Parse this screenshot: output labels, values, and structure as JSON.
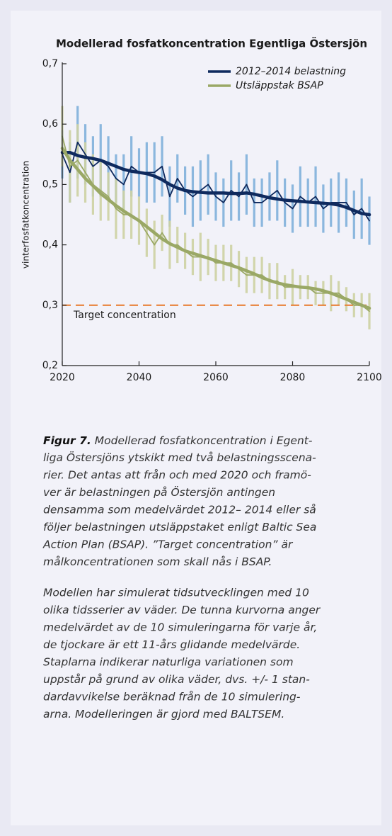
{
  "chart_data": {
    "type": "errorbar-line",
    "title": "Modellerad fosfatkoncentration Egentliga Östersjön",
    "y_label": "vinterfosfatkoncentration",
    "x": [
      2020,
      2022,
      2024,
      2026,
      2028,
      2030,
      2032,
      2034,
      2036,
      2038,
      2040,
      2042,
      2044,
      2046,
      2048,
      2050,
      2052,
      2054,
      2056,
      2058,
      2060,
      2062,
      2064,
      2066,
      2068,
      2070,
      2072,
      2074,
      2076,
      2078,
      2080,
      2082,
      2084,
      2086,
      2088,
      2090,
      2092,
      2094,
      2096,
      2098,
      2100
    ],
    "series": [
      {
        "name": "2012–2014 belastning",
        "color": "#0f2a5e",
        "error_color": "#7fb0da",
        "values": [
          0.553,
          0.553,
          0.548,
          0.545,
          0.543,
          0.54,
          0.535,
          0.53,
          0.525,
          0.522,
          0.52,
          0.518,
          0.514,
          0.508,
          0.5,
          0.494,
          0.49,
          0.488,
          0.487,
          0.486,
          0.486,
          0.486,
          0.485,
          0.485,
          0.486,
          0.484,
          0.481,
          0.478,
          0.476,
          0.474,
          0.473,
          0.472,
          0.471,
          0.47,
          0.469,
          0.468,
          0.466,
          0.462,
          0.457,
          0.452,
          0.45
        ],
        "annual": [
          0.55,
          0.52,
          0.57,
          0.55,
          0.53,
          0.54,
          0.53,
          0.51,
          0.5,
          0.53,
          0.52,
          0.52,
          0.52,
          0.53,
          0.48,
          0.51,
          0.49,
          0.48,
          0.49,
          0.5,
          0.48,
          0.47,
          0.49,
          0.48,
          0.5,
          0.47,
          0.47,
          0.48,
          0.49,
          0.47,
          0.46,
          0.48,
          0.47,
          0.48,
          0.46,
          0.47,
          0.47,
          0.47,
          0.45,
          0.46,
          0.44
        ],
        "errors": [
          0.04,
          0.05,
          0.06,
          0.05,
          0.05,
          0.06,
          0.05,
          0.04,
          0.05,
          0.05,
          0.04,
          0.05,
          0.05,
          0.05,
          0.05,
          0.04,
          0.04,
          0.05,
          0.05,
          0.05,
          0.04,
          0.04,
          0.05,
          0.04,
          0.05,
          0.04,
          0.04,
          0.04,
          0.05,
          0.04,
          0.04,
          0.05,
          0.04,
          0.05,
          0.04,
          0.04,
          0.05,
          0.04,
          0.04,
          0.05,
          0.04
        ]
      },
      {
        "name": "Utsläppstak BSAP",
        "color": "#9aa866",
        "error_color": "#cdd1a2",
        "values": [
          0.56,
          0.54,
          0.525,
          0.51,
          0.498,
          0.485,
          0.475,
          0.465,
          0.456,
          0.448,
          0.44,
          0.43,
          0.42,
          0.41,
          0.402,
          0.396,
          0.39,
          0.386,
          0.382,
          0.378,
          0.374,
          0.37,
          0.366,
          0.362,
          0.357,
          0.352,
          0.346,
          0.341,
          0.337,
          0.334,
          0.332,
          0.33,
          0.329,
          0.327,
          0.324,
          0.32,
          0.315,
          0.31,
          0.305,
          0.3,
          0.295
        ],
        "annual": [
          0.58,
          0.53,
          0.54,
          0.52,
          0.5,
          0.49,
          0.48,
          0.46,
          0.45,
          0.45,
          0.44,
          0.42,
          0.4,
          0.42,
          0.4,
          0.4,
          0.39,
          0.38,
          0.38,
          0.38,
          0.37,
          0.37,
          0.37,
          0.36,
          0.35,
          0.35,
          0.35,
          0.34,
          0.34,
          0.33,
          0.33,
          0.33,
          0.33,
          0.32,
          0.32,
          0.32,
          0.32,
          0.31,
          0.3,
          0.3,
          0.29
        ],
        "errors": [
          0.05,
          0.06,
          0.06,
          0.05,
          0.05,
          0.05,
          0.04,
          0.05,
          0.04,
          0.04,
          0.04,
          0.04,
          0.04,
          0.03,
          0.04,
          0.03,
          0.03,
          0.03,
          0.04,
          0.03,
          0.03,
          0.03,
          0.03,
          0.03,
          0.03,
          0.03,
          0.03,
          0.03,
          0.03,
          0.02,
          0.03,
          0.02,
          0.02,
          0.02,
          0.02,
          0.03,
          0.02,
          0.02,
          0.02,
          0.02,
          0.03
        ]
      }
    ],
    "target": {
      "value": 0.3,
      "label": "Target concentration",
      "color": "#e8833a"
    },
    "xlim": [
      2020,
      2100
    ],
    "xticks": [
      2020,
      2040,
      2060,
      2080,
      2100
    ],
    "ylim": [
      0.2,
      0.7
    ],
    "yticks": [
      {
        "value": 0.2,
        "label": "0,2"
      },
      {
        "value": 0.3,
        "label": "0,3"
      },
      {
        "value": 0.4,
        "label": "0,4"
      },
      {
        "value": 0.5,
        "label": "0,5"
      },
      {
        "value": 0.6,
        "label": "0,6"
      },
      {
        "value": 0.7,
        "label": "0,7"
      }
    ],
    "legend": "upper right"
  },
  "caption": {
    "label": "Figur 7.",
    "paragraphs": [
      [
        "Modellerad fosfatkoncentration i Egent-",
        "liga Östersjöns ytskikt med två belastningsscena-",
        "rier. Det antas att från och med 2020 och framö-",
        "ver är belastningen på Östersjön antingen",
        "densamma som medelvärdet 2012– 2014 eller så",
        "följer belastningen utsläppstaket enligt Baltic Sea",
        "Action Plan (BSAP). ”Target concentration” är",
        "målkoncentrationen som skall nås i BSAP."
      ],
      [
        "Modellen har simulerat tidsutvecklingen med 10",
        "olika tidsserier av väder. De tunna kurvorna anger",
        "medelvärdet av de 10 simuleringarna för varje år,",
        "de tjockare är ett 11-års glidande medelvärde.",
        "Staplarna indikerar naturliga variationen som",
        "uppstår på grund av olika väder, dvs. +/- 1 stan-",
        "dardavvikelse beräknad från de 10 simulering-",
        "arna. Modelleringen är gjord med BALTSEM."
      ]
    ]
  }
}
